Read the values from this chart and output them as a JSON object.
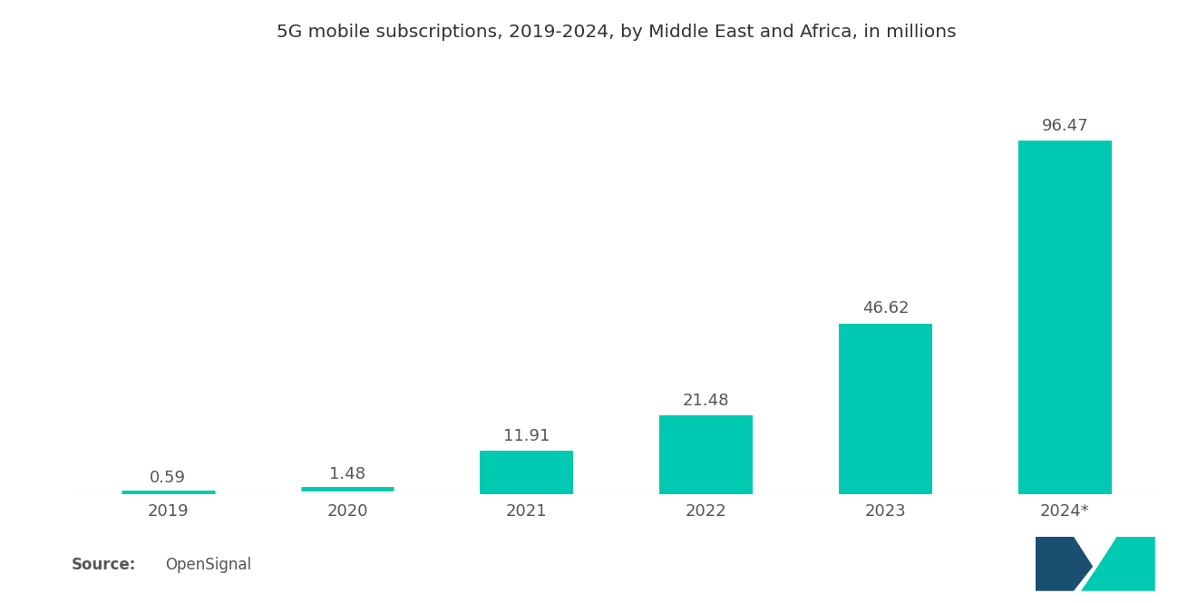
{
  "title": "5G mobile subscriptions, 2019-2024, by Middle East and Africa, in millions",
  "categories": [
    "2019",
    "2020",
    "2021",
    "2022",
    "2023",
    "2024*"
  ],
  "values": [
    0.59,
    1.48,
    11.91,
    21.48,
    46.62,
    96.47
  ],
  "bar_color": "#00C9B1",
  "value_labels": [
    "0.59",
    "1.48",
    "11.91",
    "21.48",
    "46.62",
    "96.47"
  ],
  "source_bold": "Source:",
  "source_text": "OpenSignal",
  "background_color": "#ffffff",
  "text_color": "#555555",
  "title_color": "#333333",
  "bar_threshold": 2.5,
  "ylim": [
    0,
    115
  ],
  "logo_color1": "#1B4F72",
  "logo_color2": "#00C9B1"
}
